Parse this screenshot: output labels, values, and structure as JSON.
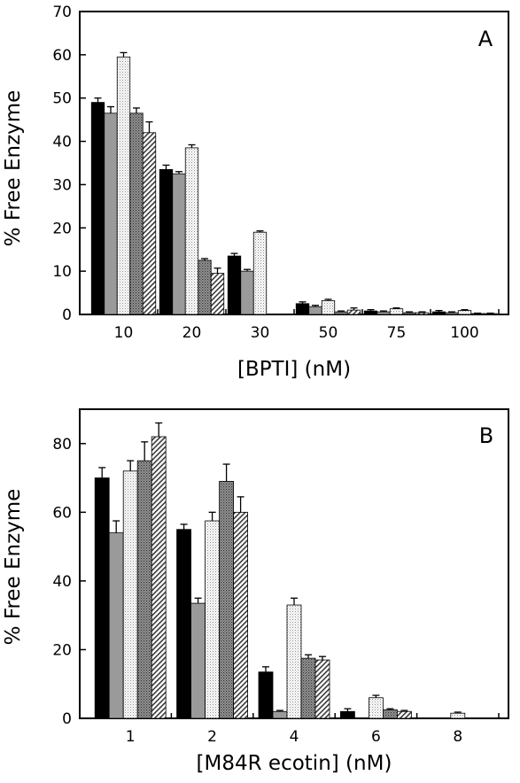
{
  "chart_data": [
    {
      "type": "bar",
      "panel_label": "A",
      "xlabel": "[BPTI] (nM)",
      "ylabel": "% Free Enzyme",
      "ylim": [
        0,
        70
      ],
      "yticks": [
        0,
        10,
        20,
        30,
        40,
        50,
        60,
        70
      ],
      "categories": [
        "10",
        "20",
        "30",
        "50",
        "75",
        "100"
      ],
      "grid": false,
      "series": [
        {
          "fill": "black",
          "values": [
            49.0,
            33.5,
            13.5,
            2.5,
            0.8,
            0.6
          ],
          "errors": [
            1.0,
            1.0,
            0.6,
            0.4,
            0.3,
            0.3
          ]
        },
        {
          "fill": "gray",
          "values": [
            46.5,
            32.5,
            10.0,
            1.8,
            0.6,
            0.4
          ],
          "errors": [
            1.5,
            0.5,
            0.4,
            0.3,
            0.2,
            0.2
          ]
        },
        {
          "fill": "light-dots",
          "values": [
            59.5,
            38.5,
            19.0,
            3.2,
            1.3,
            0.9
          ],
          "errors": [
            1.0,
            0.7,
            0.3,
            0.3,
            0.2,
            0.2
          ]
        },
        {
          "fill": "dark-dots",
          "values": [
            46.5,
            12.5,
            null,
            0.6,
            0.4,
            0.2
          ],
          "errors": [
            1.2,
            0.4,
            null,
            0.2,
            0.2,
            0.1
          ]
        },
        {
          "fill": "hatch",
          "values": [
            42.0,
            9.5,
            null,
            1.0,
            0.4,
            0.2
          ],
          "errors": [
            2.5,
            1.2,
            null,
            0.5,
            0.2,
            0.1
          ]
        }
      ]
    },
    {
      "type": "bar",
      "panel_label": "B",
      "xlabel": "[M84R ecotin] (nM)",
      "ylabel": "% Free Enzyme",
      "ylim": [
        0,
        90
      ],
      "yticks": [
        0,
        20,
        40,
        60,
        80
      ],
      "categories": [
        "1",
        "2",
        "4",
        "6",
        "8"
      ],
      "grid": false,
      "series": [
        {
          "fill": "black",
          "values": [
            70.0,
            55.0,
            13.5,
            2.0,
            null
          ],
          "errors": [
            3.0,
            1.5,
            1.5,
            0.8,
            null
          ]
        },
        {
          "fill": "gray",
          "values": [
            54.0,
            33.5,
            2.0,
            null,
            null
          ],
          "errors": [
            3.5,
            1.5,
            0.3,
            null,
            null
          ]
        },
        {
          "fill": "light-dots",
          "values": [
            72.0,
            57.5,
            33.0,
            6.0,
            1.5
          ],
          "errors": [
            3.0,
            2.5,
            2.0,
            0.7,
            0.3
          ]
        },
        {
          "fill": "dark-dots",
          "values": [
            75.0,
            69.0,
            17.5,
            2.5,
            null
          ],
          "errors": [
            5.5,
            5.0,
            1.0,
            0.3,
            null
          ]
        },
        {
          "fill": "hatch",
          "values": [
            82.0,
            60.0,
            17.0,
            2.0,
            null
          ],
          "errors": [
            4.0,
            4.5,
            1.0,
            0.3,
            null
          ]
        }
      ]
    }
  ]
}
